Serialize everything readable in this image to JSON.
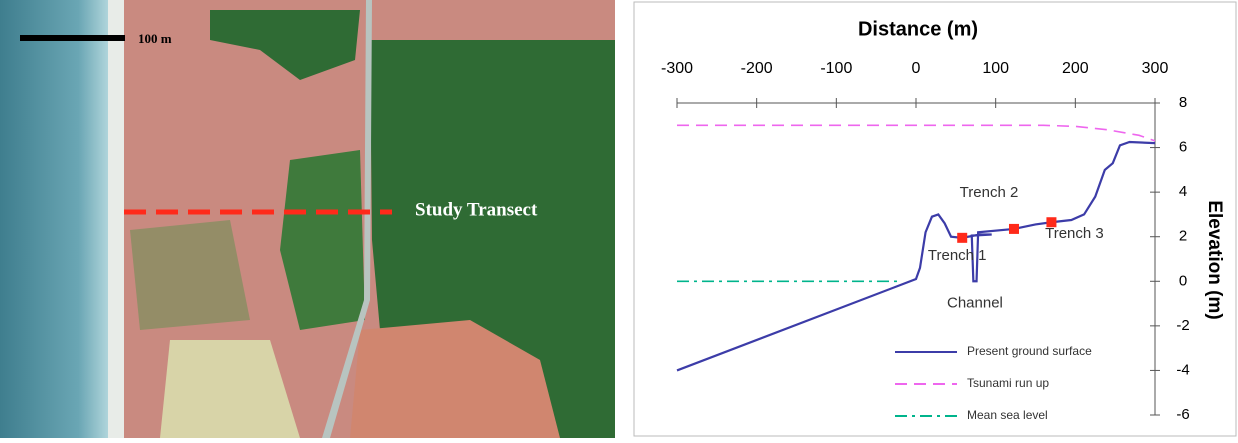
{
  "photo": {
    "scale_label": "100 m",
    "transect_label": "Study Transect"
  },
  "chart_data": {
    "type": "line",
    "title": "Distance (m)",
    "y_label": "Elevation (m)",
    "xlim": [
      -300,
      300
    ],
    "xticks": [
      -300,
      -200,
      -100,
      0,
      100,
      200,
      300
    ],
    "ylim": [
      -6,
      8
    ],
    "yticks": [
      -6,
      -4,
      -2,
      0,
      2,
      4,
      6,
      8
    ],
    "legend": "lower right",
    "series": [
      {
        "name": "Present ground surface",
        "color": "#3c3ca8",
        "dash": "solid",
        "x": [
          -300,
          0,
          5,
          12,
          20,
          28,
          36,
          44,
          58,
          80,
          95,
          70,
          72,
          74,
          76,
          78,
          123,
          150,
          170,
          195,
          211,
          225,
          237,
          247,
          256,
          268,
          300
        ],
        "values": [
          -4,
          0.1,
          0.6,
          2.2,
          2.9,
          3,
          2.6,
          2,
          1.95,
          2.1,
          2.1,
          2.05,
          0,
          0,
          0,
          2.2,
          2.35,
          2.55,
          2.65,
          2.75,
          3,
          3.8,
          5,
          5.3,
          6.1,
          6.25,
          6.2
        ]
      },
      {
        "name": "Tsunami run up",
        "color": "#ee66ee",
        "dash": "dash",
        "x": [
          -300,
          160,
          200,
          240,
          280,
          300
        ],
        "values": [
          7,
          7,
          6.95,
          6.8,
          6.55,
          6.3
        ]
      },
      {
        "name": "Mean sea level",
        "color": "#00b48c",
        "dash": "dashdot",
        "x": [
          -300,
          -20
        ],
        "values": [
          0,
          0
        ]
      }
    ],
    "annotations": [
      {
        "text": "Trench 1",
        "x": 58,
        "y": 1.95,
        "marker": "#ff2a1a"
      },
      {
        "text": "Trench 2",
        "x": 123,
        "y": 2.35,
        "marker": "#ff2a1a"
      },
      {
        "text": "Trench 3",
        "x": 170,
        "y": 2.65,
        "marker": "#ff2a1a"
      },
      {
        "text": "Channel",
        "x": 74,
        "y": 0
      }
    ]
  }
}
